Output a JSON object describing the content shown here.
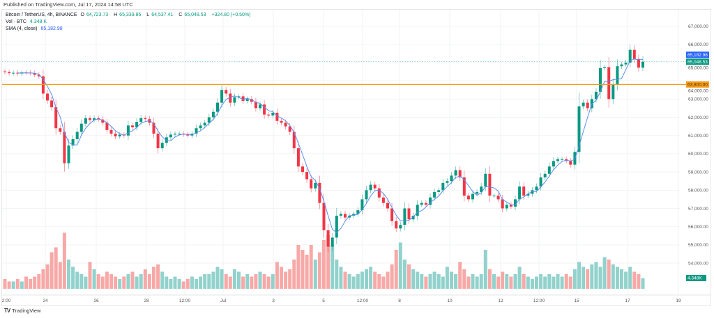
{
  "published": "Published on TradingView.com, Jul 17, 2024 14:58 UTC",
  "legend": {
    "symbol": "Bitcoin / TetherUS, 4h, BINANCE",
    "open_label": "O",
    "open": "64,723.73",
    "high_label": "H",
    "high": "65,339.86",
    "low_label": "L",
    "low": "64,537.41",
    "close_label": "C",
    "close": "65,048.53",
    "change": "+324.80 (+0.50%)",
    "vol_label": "Vol · BTC",
    "vol_value": "4.348 K",
    "sma_label": "SMA (4, close)",
    "sma_value": "65,182.98"
  },
  "footer": {
    "brand": "TradingView"
  },
  "colors": {
    "up": "#089981",
    "down": "#F23645",
    "vol_up": "#92D2CC",
    "vol_down": "#F7A9A7",
    "sma": "#5B8DEF",
    "hline": "#F59D1A",
    "sma_tag": "#2962FF"
  },
  "chart_data": {
    "type": "candlestick",
    "interval": "4h",
    "x_tick_labels": [
      "2:00",
      "24",
      "26",
      "28",
      "12:00",
      "Jul",
      "3",
      "5",
      "12:00",
      "8",
      "10",
      "12",
      "12:00",
      "15",
      "17",
      "19"
    ],
    "y_tick_labels": [
      "67,000.00",
      "66,000.00",
      "65,000.00",
      "64,000.00",
      "63,000.00",
      "62,000.00",
      "61,000.00",
      "60,000.00",
      "59,000.00",
      "58,000.00",
      "57,000.00",
      "56,000.00",
      "55,000.00",
      "54,000.00"
    ],
    "y_ticks": [
      67000,
      66000,
      65000,
      64000,
      63000,
      62000,
      61000,
      60000,
      59000,
      58000,
      57000,
      56000,
      55000,
      54000
    ],
    "ylim": [
      52400,
      67900
    ],
    "grid": true,
    "horizontal_line": {
      "value": 63800,
      "label": "63,800.00"
    },
    "last_price": {
      "value": 65048.53,
      "label": "65,048.53"
    },
    "sma_last": {
      "value": 65182.98,
      "label": "65,182.98"
    },
    "volume_last_label": "4.348K",
    "sma_period": 4,
    "last_candle": {
      "open": 64723.73,
      "high": 65339.86,
      "low": 64537.41,
      "close": 65048.53
    },
    "closes": [
      64480,
      64420,
      64440,
      64400,
      64460,
      64450,
      64420,
      64330,
      64250,
      63300,
      62920,
      62550,
      61400,
      61200,
      59480,
      60450,
      60800,
      61200,
      61650,
      61950,
      61850,
      61950,
      61880,
      61700,
      61300,
      61100,
      60950,
      61050,
      61000,
      61550,
      61450,
      61750,
      61950,
      61900,
      61700,
      61100,
      60300,
      60600,
      60900,
      61050,
      61100,
      61100,
      61050,
      61000,
      61100,
      61400,
      61550,
      61700,
      62000,
      62300,
      62800,
      63500,
      63300,
      62800,
      63100,
      63150,
      62900,
      63000,
      62850,
      62500,
      62700,
      62150,
      62100,
      62250,
      61800,
      61700,
      61500,
      61200,
      60300,
      59300,
      59000,
      58600,
      58100,
      58400,
      57300,
      55800,
      54900,
      55400,
      56600,
      56700,
      56500,
      56600,
      56700,
      56900,
      57500,
      58000,
      58300,
      58100,
      57600,
      57300,
      57000,
      56300,
      55900,
      56100,
      57000,
      56400,
      56600,
      57200,
      57300,
      57200,
      57600,
      57900,
      58000,
      58400,
      58500,
      58800,
      59100,
      58700,
      57700,
      57500,
      57800,
      57900,
      58200,
      58900,
      57700,
      57700,
      57500,
      57000,
      57200,
      57100,
      57500,
      58200,
      57700,
      57800,
      58000,
      58200,
      58700,
      58900,
      59300,
      59600,
      59700,
      59700,
      59600,
      59400,
      60100,
      62600,
      62800,
      62500,
      63000,
      63400,
      64700,
      64750,
      63000,
      63800,
      64800,
      64900,
      65000,
      65700,
      65200,
      64723.73,
      65048.53
    ],
    "volumes_k": [
      4,
      3,
      3,
      4,
      3,
      5,
      4,
      5,
      6,
      8,
      10,
      15,
      17,
      11,
      23,
      12,
      9,
      7,
      6,
      5,
      11,
      8,
      6,
      5,
      7,
      6,
      5,
      4,
      5,
      6,
      7,
      5,
      6,
      8,
      6,
      9,
      10,
      7,
      5,
      4,
      5,
      4,
      3,
      4,
      5,
      4,
      5,
      6,
      6,
      7,
      9,
      8,
      6,
      5,
      8,
      7,
      5,
      6,
      5,
      6,
      7,
      6,
      5,
      6,
      11,
      9,
      7,
      8,
      12,
      18,
      16,
      14,
      18,
      12,
      15,
      20,
      22,
      18,
      12,
      9,
      7,
      6,
      5,
      6,
      7,
      8,
      9,
      7,
      6,
      5,
      7,
      10,
      16,
      19,
      12,
      10,
      8,
      7,
      6,
      5,
      6,
      7,
      6,
      5,
      9,
      7,
      6,
      11,
      8,
      5,
      6,
      5,
      6,
      16,
      8,
      6,
      5,
      7,
      6,
      5,
      6,
      9,
      6,
      5,
      4,
      5,
      6,
      5,
      6,
      5,
      6,
      5,
      6,
      5,
      8,
      11,
      9,
      8,
      10,
      11,
      9,
      13,
      12,
      10,
      9,
      8,
      7,
      9,
      7,
      6,
      4.348
    ]
  }
}
